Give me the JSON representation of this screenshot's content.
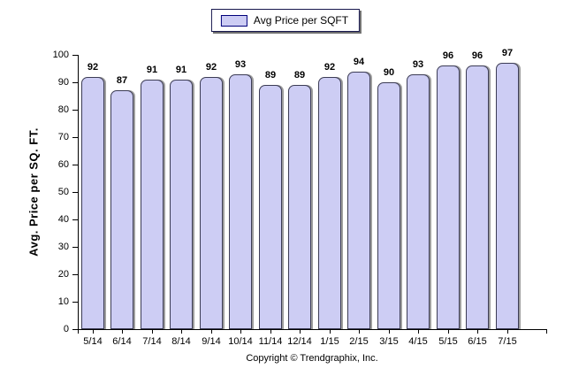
{
  "chart_data": {
    "type": "bar",
    "title": "",
    "categories": [
      "5/14",
      "6/14",
      "7/14",
      "8/14",
      "9/14",
      "10/14",
      "11/14",
      "12/14",
      "1/15",
      "2/15",
      "3/15",
      "4/15",
      "5/15",
      "6/15",
      "7/15"
    ],
    "values": [
      92,
      87,
      91,
      91,
      92,
      93,
      89,
      89,
      92,
      94,
      90,
      93,
      96,
      96,
      97
    ],
    "xlabel": "",
    "ylabel": "Avg. Price per SQ. FT.",
    "ylim": [
      0,
      100
    ],
    "ytick_step": 10,
    "grid": false,
    "legend": [
      "Avg Price per SQFT"
    ],
    "legend_position": "top-center",
    "colors": {
      "bar_fill": "#cdcdf4",
      "bar_border": "#3c3c55",
      "bar_shadow": "#9e9e9e",
      "axis": "#000000",
      "text": "#000000"
    }
  },
  "legend": {
    "label": "Avg Price per SQFT"
  },
  "footer": {
    "copyright": "Copyright © Trendgraphix, Inc."
  }
}
